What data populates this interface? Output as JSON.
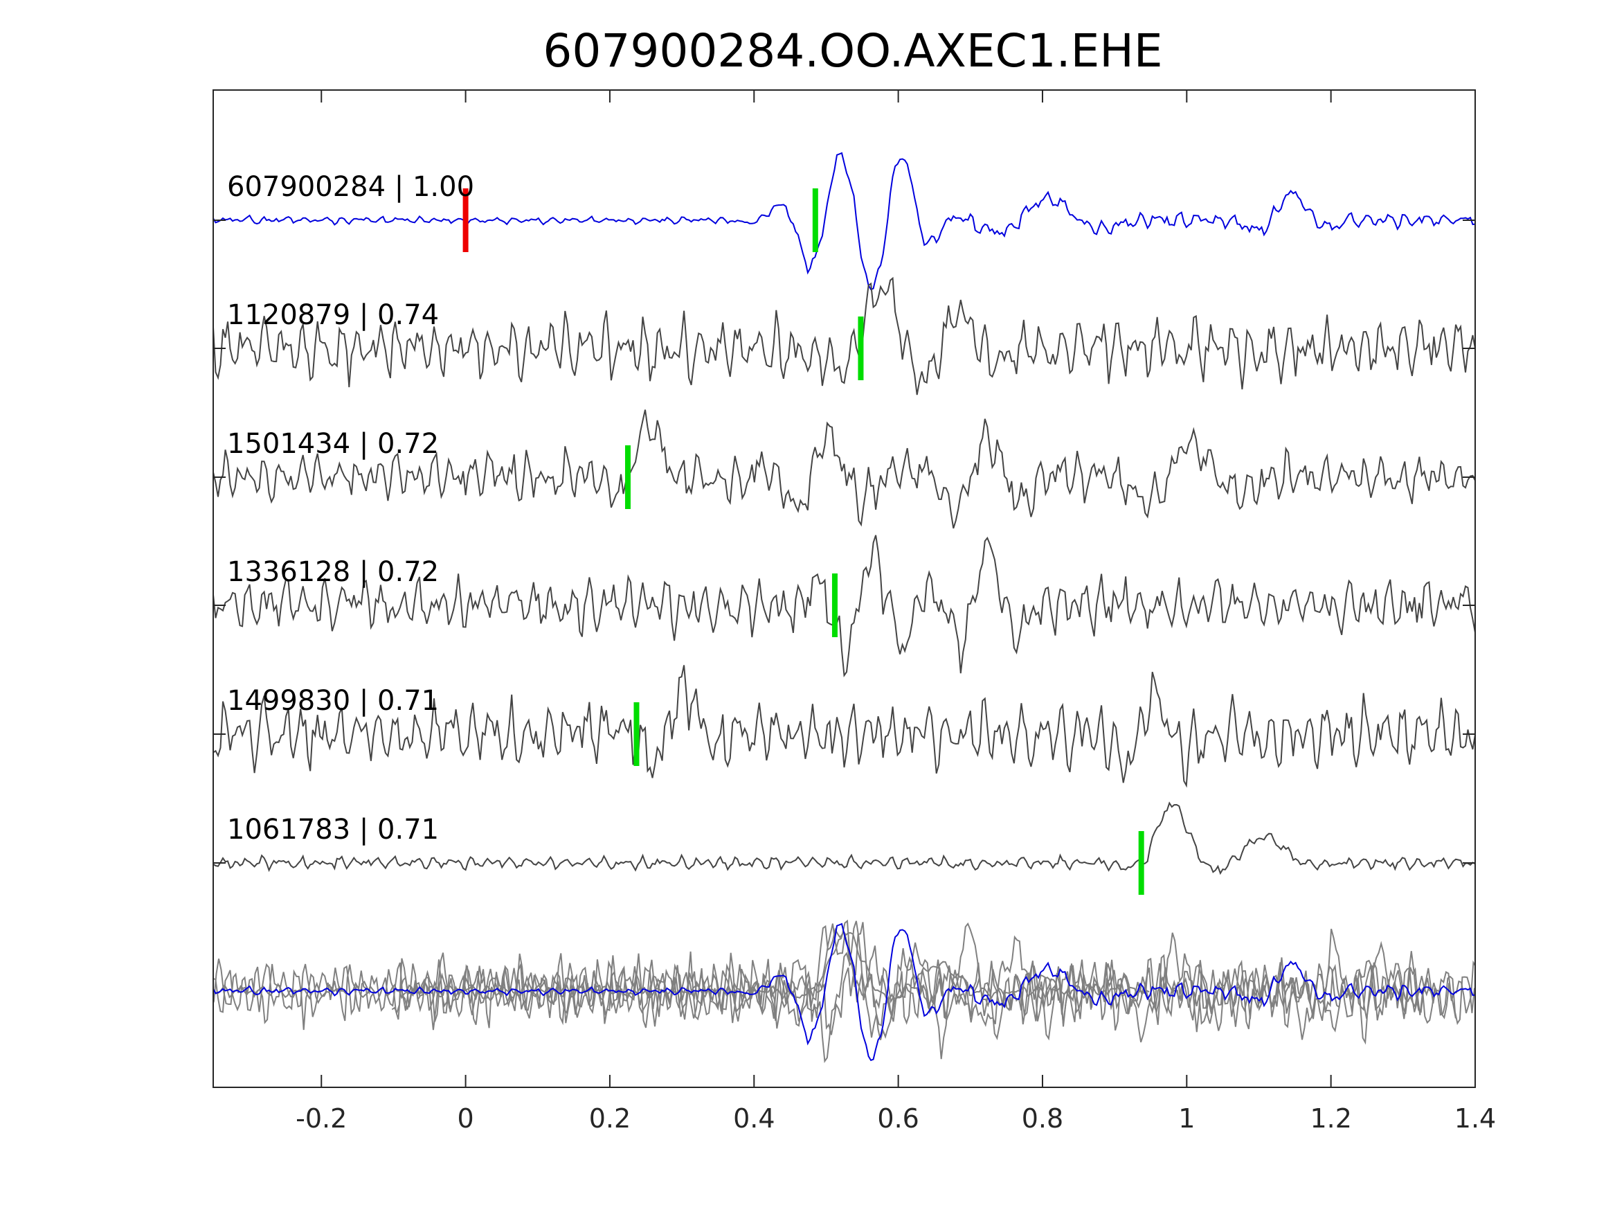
{
  "chart_data": {
    "type": "line",
    "title": "607900284.OO.AXEC1.EHE",
    "xlim": [
      -0.35,
      1.4
    ],
    "x_ticks": [
      -0.2,
      0,
      0.2,
      0.4,
      0.6,
      0.8,
      1,
      1.2,
      1.4
    ],
    "x_tick_labels": [
      "-0.2",
      "0",
      "0.2",
      "0.4",
      "0.6",
      "0.8",
      "1",
      "1.2",
      "1.4"
    ],
    "grid": false,
    "colors": {
      "template": "#0000dd",
      "trace": "#444444",
      "overlay": "#808080",
      "reference_pick": "#ee0000",
      "pick": "#00dd00",
      "axes": "#262626"
    },
    "reference_pick": {
      "trace": 0,
      "x": 0.0
    },
    "traces": [
      {
        "label": "607900284 | 1.00",
        "color": "template",
        "pick": 0.485,
        "noise": 0.14,
        "burst_start": 0.44,
        "events": [
          [
            0.515,
            1.0,
            0.07,
            11
          ],
          [
            0.6,
            0.9,
            0.05,
            11
          ],
          [
            0.8,
            0.35,
            0.09,
            6
          ],
          [
            1.14,
            0.45,
            0.05,
            8
          ]
        ],
        "seed": 11
      },
      {
        "label": "1120879 | 0.74",
        "color": "trace",
        "pick": 0.548,
        "noise": 0.55,
        "burst_start": -0.35,
        "events": [
          [
            0.57,
            1.0,
            0.05,
            7
          ],
          [
            0.68,
            0.6,
            0.06,
            9
          ]
        ],
        "seed": 23
      },
      {
        "label": "1501434 | 0.72",
        "color": "trace",
        "pick": 0.225,
        "noise": 0.45,
        "burst_start": -0.35,
        "events": [
          [
            0.25,
            0.9,
            0.04,
            8
          ],
          [
            0.5,
            0.7,
            0.07,
            10
          ],
          [
            0.72,
            0.7,
            0.07,
            10
          ],
          [
            1.0,
            0.6,
            0.08,
            7
          ]
        ],
        "seed": 37
      },
      {
        "label": "1336128 | 0.72",
        "color": "trace",
        "pick": 0.512,
        "noise": 0.5,
        "burst_start": -0.35,
        "events": [
          [
            0.56,
            0.9,
            0.07,
            12
          ],
          [
            0.72,
            0.9,
            0.05,
            11
          ]
        ],
        "seed": 41
      },
      {
        "label": "1499830 | 0.71",
        "color": "trace",
        "pick": 0.237,
        "noise": 0.6,
        "burst_start": -0.35,
        "events": [
          [
            0.3,
            0.7,
            0.05,
            9
          ],
          [
            0.95,
            0.6,
            0.06,
            11
          ]
        ],
        "seed": 53
      },
      {
        "label": "1061783 | 0.71",
        "color": "trace",
        "pick": 0.937,
        "noise": 0.12,
        "burst_start": -0.35,
        "events": [
          [
            0.975,
            1.0,
            0.04,
            5
          ],
          [
            1.1,
            0.45,
            0.06,
            5
          ]
        ],
        "seed": 67
      }
    ]
  }
}
